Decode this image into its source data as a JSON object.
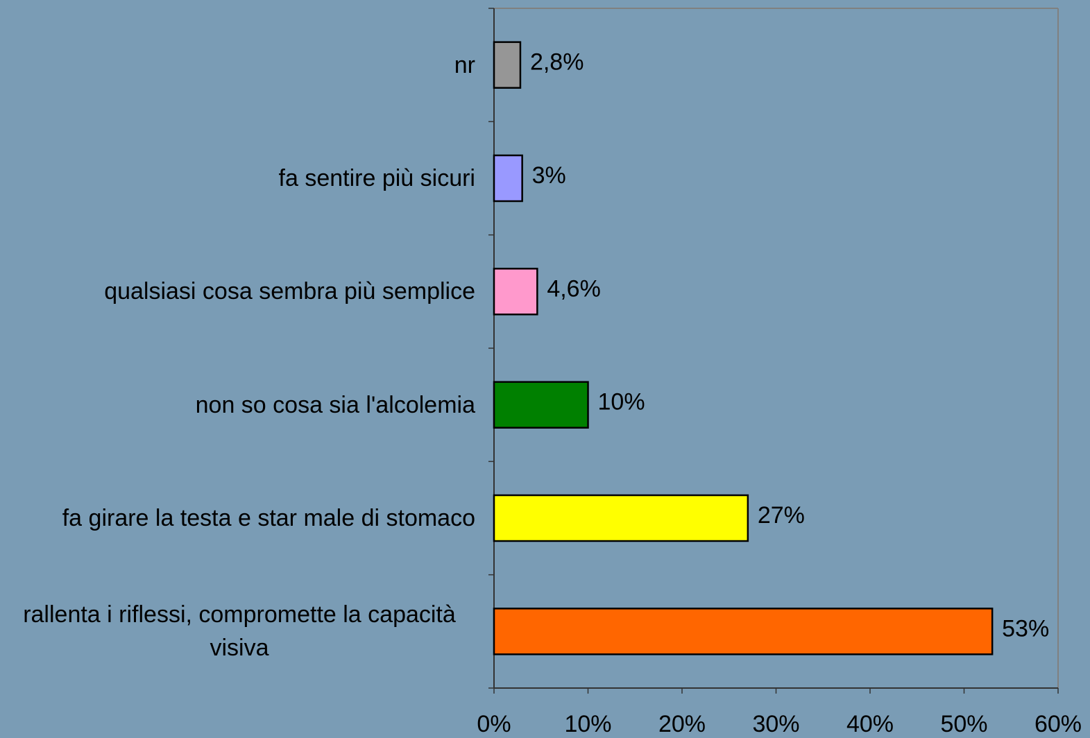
{
  "chart_data": {
    "type": "bar",
    "orientation": "horizontal",
    "categories": [
      "nr",
      "fa sentire più sicuri",
      "qualsiasi cosa sembra più semplice",
      "non so cosa sia l'alcolemia",
      "fa girare la testa e star male di stomaco",
      "rallenta i riflessi, compromette la capacità visiva"
    ],
    "values": [
      2.8,
      3,
      4.6,
      10,
      27,
      53
    ],
    "value_labels": [
      "2,8%",
      "3%",
      "4,6%",
      "10%",
      "27%",
      "53%"
    ],
    "colors": [
      "#969696",
      "#9999ff",
      "#ff99cc",
      "#008000",
      "#ffff00",
      "#ff6600"
    ],
    "xlim": [
      0,
      60
    ],
    "xticks": [
      {
        "value": 0,
        "label": "0%"
      },
      {
        "value": 10,
        "label": "10%"
      },
      {
        "value": 20,
        "label": "20%"
      },
      {
        "value": 30,
        "label": "30%"
      },
      {
        "value": 40,
        "label": "40%"
      },
      {
        "value": 50,
        "label": "50%"
      },
      {
        "value": 60,
        "label": "60%"
      }
    ]
  }
}
